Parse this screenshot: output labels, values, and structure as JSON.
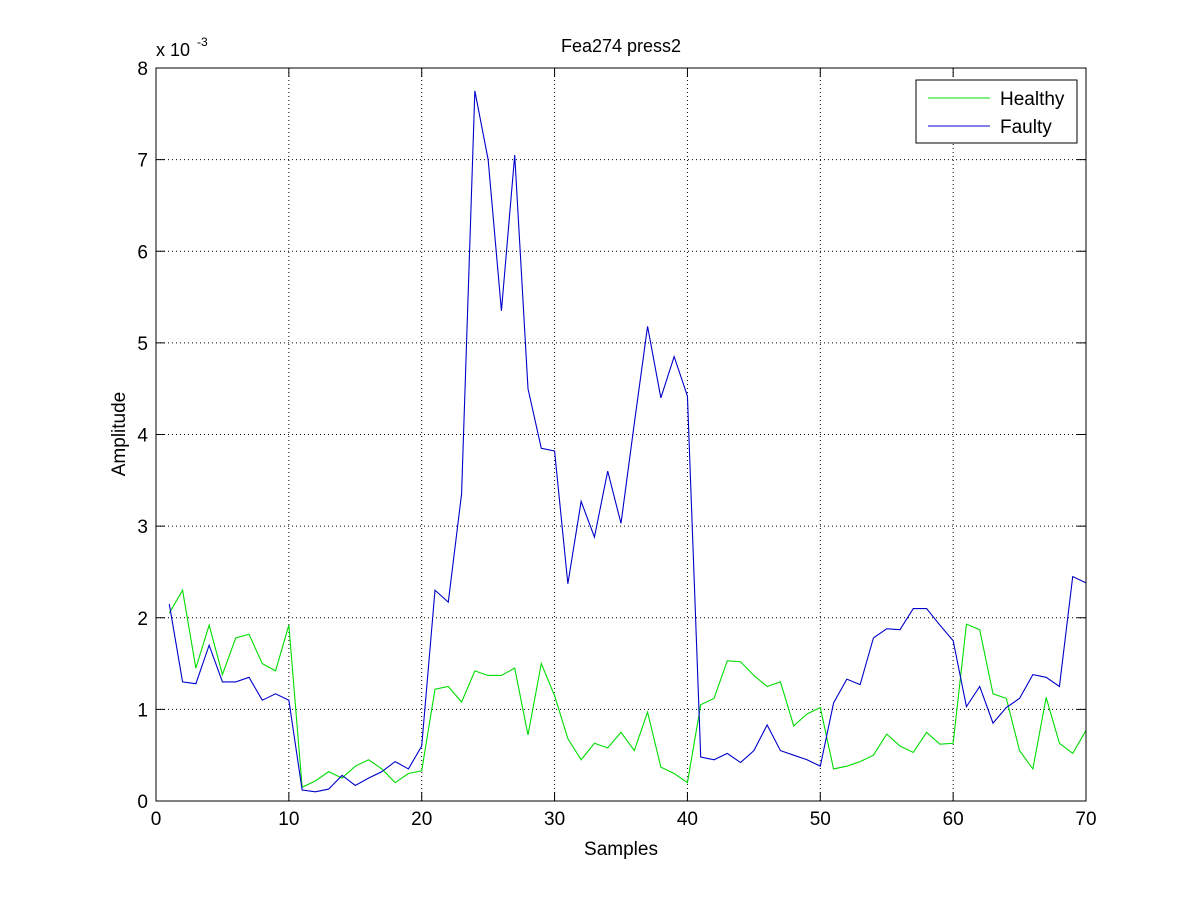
{
  "chart_data": {
    "type": "line",
    "title": "Fea274  press2",
    "xlabel": "Samples",
    "ylabel": "Amplitude",
    "y_exponent_label": "x 10",
    "y_exponent_power": "-3",
    "xlim": [
      0,
      70
    ],
    "ylim": [
      0,
      8
    ],
    "xticks": [
      "0",
      "10",
      "20",
      "30",
      "40",
      "50",
      "60",
      "70"
    ],
    "yticks": [
      "0",
      "1",
      "2",
      "3",
      "4",
      "5",
      "6",
      "7",
      "8"
    ],
    "grid": true,
    "legend_position": "top-right",
    "x": [
      1,
      2,
      3,
      4,
      5,
      6,
      7,
      8,
      9,
      10,
      11,
      12,
      13,
      14,
      15,
      16,
      17,
      18,
      19,
      20,
      21,
      22,
      23,
      24,
      25,
      26,
      27,
      28,
      29,
      30,
      31,
      32,
      33,
      34,
      35,
      36,
      37,
      38,
      39,
      40,
      41,
      42,
      43,
      44,
      45,
      46,
      47,
      48,
      49,
      50,
      51,
      52,
      53,
      54,
      55,
      56,
      57,
      58,
      59,
      60,
      61,
      62,
      63,
      64,
      65,
      66,
      67,
      68,
      69,
      70
    ],
    "series": [
      {
        "name": "Healthy",
        "color": "#00dd00",
        "values": [
          2.05,
          2.3,
          1.45,
          1.92,
          1.38,
          1.78,
          1.82,
          1.5,
          1.42,
          1.92,
          0.15,
          0.22,
          0.32,
          0.25,
          0.38,
          0.45,
          0.35,
          0.2,
          0.3,
          0.33,
          1.22,
          1.25,
          1.08,
          1.42,
          1.37,
          1.37,
          1.45,
          0.72,
          1.5,
          1.15,
          0.68,
          0.45,
          0.63,
          0.58,
          0.75,
          0.55,
          0.97,
          0.37,
          0.3,
          0.2,
          1.05,
          1.12,
          1.53,
          1.52,
          1.37,
          1.25,
          1.3,
          0.82,
          0.95,
          1.02,
          0.35,
          0.38,
          0.43,
          0.5,
          0.73,
          0.6,
          0.53,
          0.75,
          0.62,
          0.63,
          1.93,
          1.87,
          1.17,
          1.12,
          0.55,
          0.35,
          1.13,
          0.63,
          0.52,
          0.77
        ]
      },
      {
        "name": "Faulty",
        "color": "#0000cc",
        "values": [
          2.15,
          1.3,
          1.28,
          1.7,
          1.3,
          1.3,
          1.35,
          1.1,
          1.17,
          1.1,
          0.12,
          0.1,
          0.13,
          0.28,
          0.17,
          0.25,
          0.32,
          0.43,
          0.35,
          0.6,
          2.3,
          2.17,
          3.35,
          7.75,
          7.0,
          5.35,
          7.05,
          4.5,
          3.85,
          3.82,
          2.37,
          3.27,
          2.88,
          3.6,
          3.03,
          4.12,
          5.18,
          4.4,
          4.85,
          4.42,
          0.48,
          0.45,
          0.52,
          0.42,
          0.55,
          0.83,
          0.55,
          0.5,
          0.45,
          0.38,
          1.07,
          1.33,
          1.27,
          1.78,
          1.88,
          1.87,
          2.1,
          2.1,
          1.92,
          1.75,
          1.03,
          1.25,
          0.85,
          1.02,
          1.12,
          1.38,
          1.35,
          1.25,
          2.45,
          2.38
        ]
      }
    ]
  }
}
